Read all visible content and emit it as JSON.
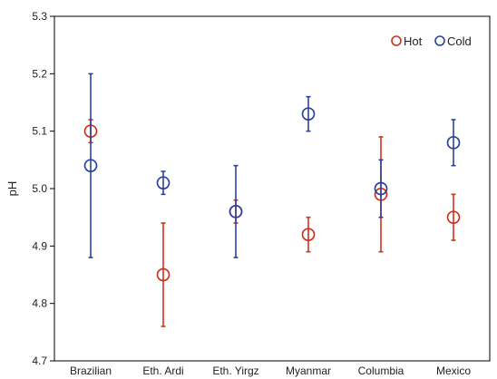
{
  "chart_data": {
    "type": "scatter",
    "title": "",
    "xlabel": "",
    "ylabel": "pH",
    "ylim": [
      4.7,
      5.3
    ],
    "yticks": [
      "4.7",
      "4.8",
      "4.9",
      "5.0",
      "5.1",
      "5.2",
      "5.3"
    ],
    "categories": [
      "Brazilian",
      "Eth. Ardi",
      "Eth. Yirgz",
      "Myanmar",
      "Columbia",
      "Mexico"
    ],
    "grid": false,
    "legend_position": "top-right",
    "series": [
      {
        "name": "Hot",
        "color": "#d0311f",
        "values": [
          5.1,
          4.85,
          4.96,
          4.92,
          4.99,
          4.95
        ],
        "err_low": [
          5.08,
          4.76,
          4.94,
          4.89,
          4.89,
          4.91
        ],
        "err_high": [
          5.12,
          4.94,
          4.98,
          4.95,
          5.09,
          4.99
        ]
      },
      {
        "name": "Cold",
        "color": "#2a42a0",
        "values": [
          5.04,
          5.01,
          4.96,
          5.13,
          5.0,
          5.08
        ],
        "err_low": [
          4.88,
          4.99,
          4.88,
          5.1,
          4.95,
          5.04
        ],
        "err_high": [
          5.2,
          5.03,
          5.04,
          5.16,
          5.05,
          5.12
        ]
      }
    ]
  }
}
